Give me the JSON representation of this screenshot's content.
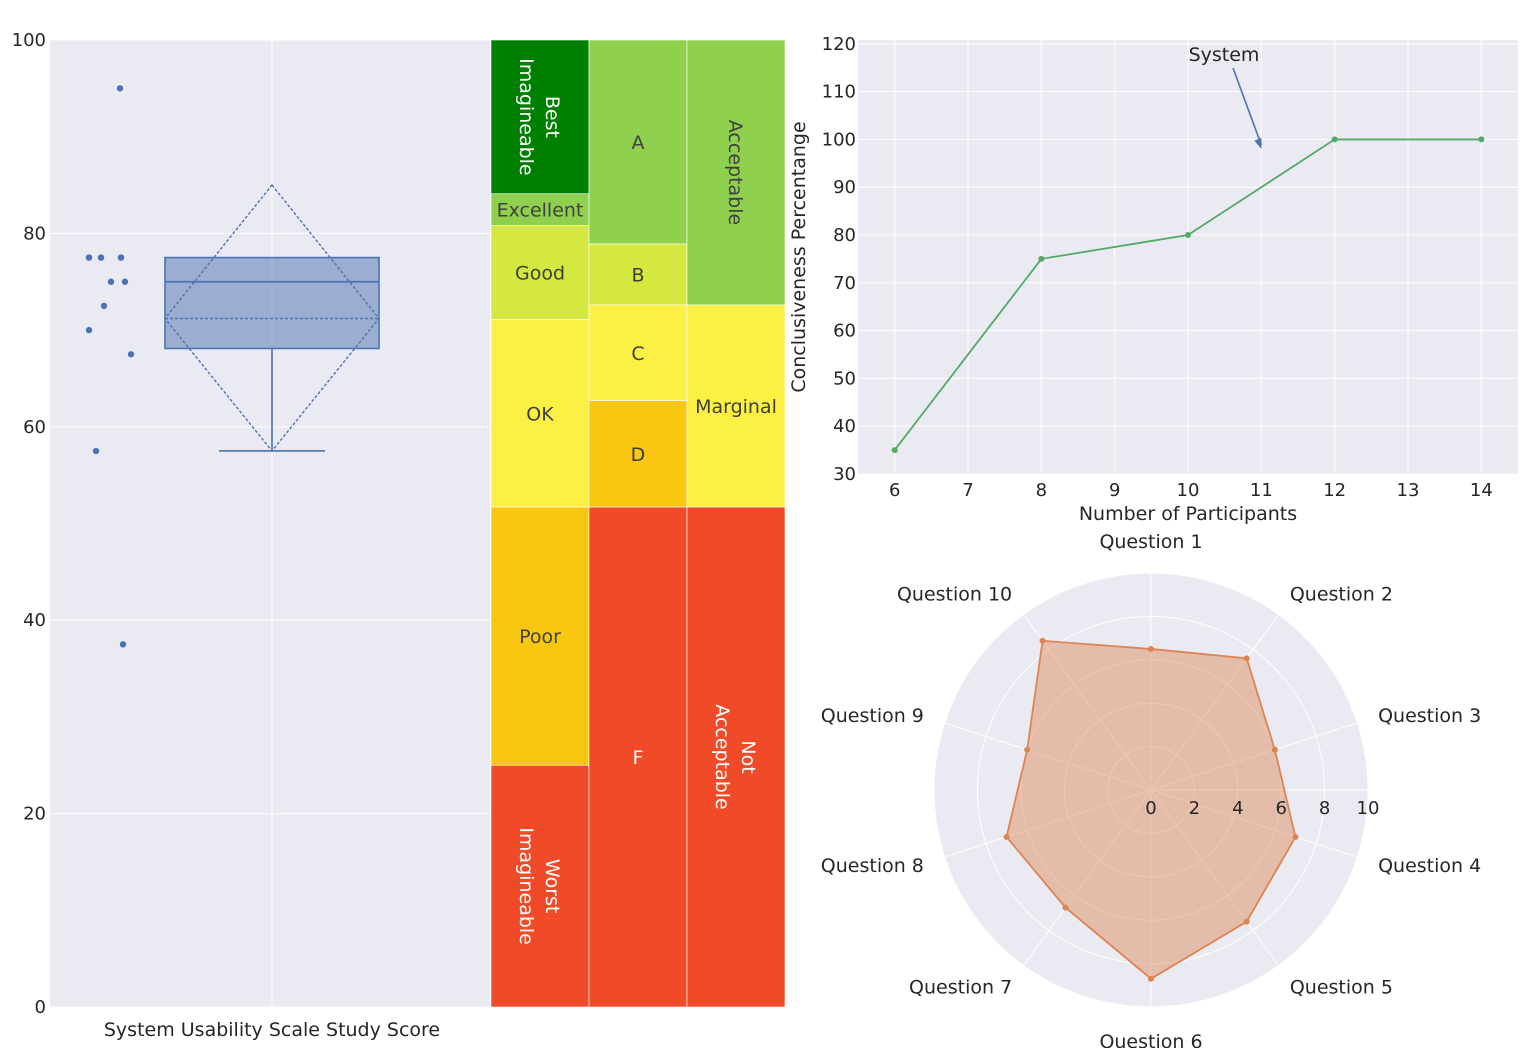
{
  "chart_data": [
    {
      "type": "box",
      "xlabel": "System Usability Scale Study Score",
      "ylim": [
        0,
        100
      ],
      "yticks": [
        0,
        20,
        40,
        60,
        80,
        100
      ],
      "box": {
        "whisker_low": 57.5,
        "q1": 68.1,
        "median": 75,
        "q3": 77.5,
        "whisker_high": 77.5,
        "mean": 71.2,
        "mean_diamond_low": 57.5,
        "mean_diamond_high": 85
      },
      "points": [
        95,
        77.5,
        77.5,
        77.5,
        75,
        75,
        72.5,
        70,
        67.5,
        57.5,
        37.5
      ],
      "grade_scales": [
        {
          "bands": [
            {
              "label": "Best\nImagineable",
              "from": 84.1,
              "to": 100,
              "color": "#008000",
              "text_color": "#ffffff",
              "vertical": true
            },
            {
              "label": "Excellent",
              "from": 80.8,
              "to": 84.1,
              "color": "#8fd14f",
              "text_color": "#404040",
              "vertical": false
            },
            {
              "label": "Good",
              "from": 71.1,
              "to": 80.8,
              "color": "#d4e83f",
              "text_color": "#404040",
              "vertical": false
            },
            {
              "label": "OK",
              "from": 51.7,
              "to": 71.1,
              "color": "#fcf045",
              "text_color": "#404040",
              "vertical": false
            },
            {
              "label": "Poor",
              "from": 25,
              "to": 51.7,
              "color": "#f9c712",
              "text_color": "#404040",
              "vertical": false
            },
            {
              "label": "Worst\nImagineable",
              "from": 0,
              "to": 25,
              "color": "#f04a28",
              "text_color": "#ffffff",
              "vertical": true
            }
          ]
        },
        {
          "bands": [
            {
              "label": "A",
              "from": 78.9,
              "to": 100,
              "color": "#8fd14f",
              "text_color": "#404040",
              "vertical": false
            },
            {
              "label": "B",
              "from": 72.6,
              "to": 78.9,
              "color": "#d4e83f",
              "text_color": "#404040",
              "vertical": false
            },
            {
              "label": "C",
              "from": 62.7,
              "to": 72.6,
              "color": "#fcf045",
              "text_color": "#404040",
              "vertical": false
            },
            {
              "label": "D",
              "from": 51.7,
              "to": 62.7,
              "color": "#f9c712",
              "text_color": "#404040",
              "vertical": false
            },
            {
              "label": "F",
              "from": 0,
              "to": 51.7,
              "color": "#f04a28",
              "text_color": "#ffffff",
              "vertical": false
            }
          ]
        },
        {
          "bands": [
            {
              "label": "Acceptable",
              "from": 72.6,
              "to": 100,
              "color": "#8fd14f",
              "text_color": "#404040",
              "vertical": true,
              "rotate": 90
            },
            {
              "label": "Marginal",
              "from": 51.7,
              "to": 72.6,
              "color": "#fcf045",
              "text_color": "#404040",
              "vertical": false
            },
            {
              "label": "Not\nAcceptable",
              "from": 0,
              "to": 51.7,
              "color": "#f04a28",
              "text_color": "#ffffff",
              "vertical": true
            }
          ]
        }
      ]
    },
    {
      "type": "line",
      "xlabel": "Number of Participants",
      "ylabel": "Conclusiveness Percentange",
      "x": [
        6,
        8,
        10,
        12,
        14
      ],
      "y": [
        35,
        75,
        80,
        100,
        100
      ],
      "xlim": [
        5.5,
        14.5
      ],
      "ylim": [
        30,
        120
      ],
      "xticks": [
        6,
        7,
        8,
        9,
        10,
        11,
        12,
        13,
        14
      ],
      "yticks": [
        30,
        40,
        50,
        60,
        70,
        80,
        90,
        100,
        110,
        120
      ],
      "color": "#55a868",
      "annotation": {
        "text": "System",
        "arrow_to": [
          11,
          98
        ],
        "text_at": [
          10.5,
          118
        ],
        "color": "#4c72b0"
      }
    },
    {
      "type": "radar",
      "axes": [
        "Question 1",
        "Question 2",
        "Question 3",
        "Question 4",
        "Question 5",
        "Question 6",
        "Question 7",
        "Question 8",
        "Question 9",
        "Question 10"
      ],
      "values": [
        6.5,
        7.5,
        6.0,
        7.0,
        7.5,
        8.7,
        6.7,
        7.0,
        6.0,
        8.5
      ],
      "rlim": [
        0,
        10
      ],
      "rticks": [
        0,
        2,
        4,
        6,
        8,
        10
      ],
      "color": "#dd8452"
    }
  ]
}
